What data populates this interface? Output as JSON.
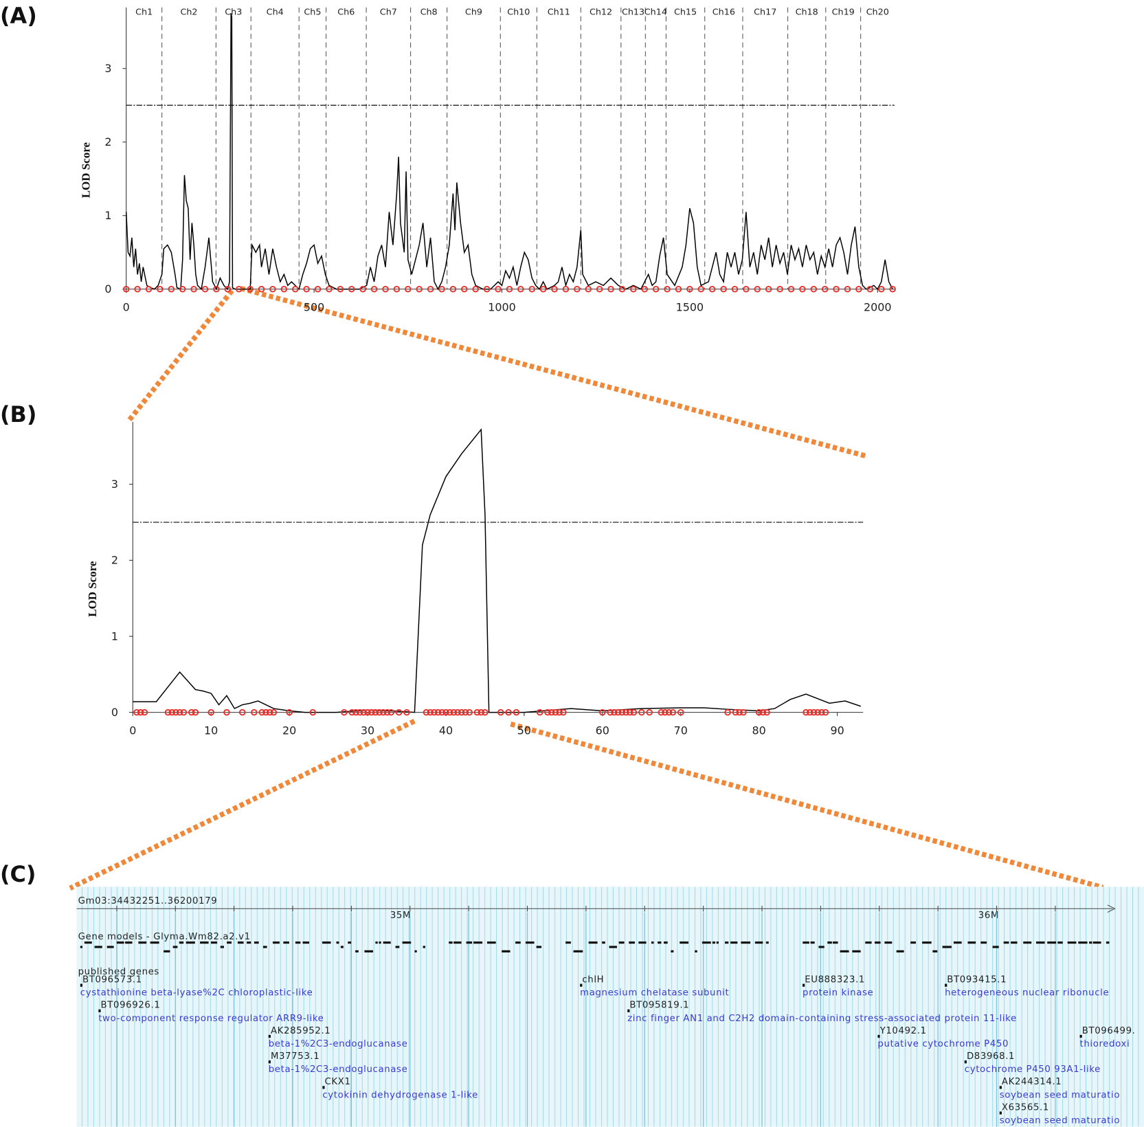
{
  "chart_data": [
    {
      "type": "line",
      "panel_label": "(A)",
      "y_label": "LOD Score",
      "color": "#000000",
      "xlim": [
        0,
        2045
      ],
      "ylim": [
        0,
        3.83
      ],
      "xticks": [
        0,
        500,
        1000,
        1500,
        2000
      ],
      "yticks": [
        0,
        1,
        2,
        3
      ],
      "threshold": 2.5,
      "chromosomes": [
        "Ch1",
        "Ch2",
        "Ch3",
        "Ch4",
        "Ch5",
        "Ch6",
        "Ch7",
        "Ch8",
        "Ch9",
        "Ch10",
        "Ch11",
        "Ch12",
        "Ch13",
        "Ch14",
        "Ch15",
        "Ch16",
        "Ch17",
        "Ch18",
        "Ch19",
        "Ch20"
      ],
      "chromosome_boundaries": [
        95,
        239,
        332,
        460,
        532,
        639,
        757,
        854,
        996,
        1093,
        1210,
        1317,
        1382,
        1437,
        1540,
        1641,
        1761,
        1862,
        1955
      ],
      "x": [
        0,
        5,
        10,
        15,
        20,
        25,
        30,
        35,
        40,
        45,
        55,
        65,
        75,
        85,
        95,
        100,
        110,
        120,
        130,
        135,
        145,
        150,
        155,
        160,
        165,
        170,
        175,
        180,
        185,
        190,
        200,
        210,
        220,
        225,
        230,
        240,
        250,
        260,
        270,
        275,
        279,
        281,
        283,
        290,
        310,
        330,
        335,
        345,
        355,
        360,
        370,
        380,
        390,
        400,
        410,
        420,
        430,
        440,
        450,
        460,
        470,
        480,
        490,
        500,
        510,
        520,
        530,
        540,
        560,
        580,
        600,
        620,
        640,
        650,
        660,
        670,
        680,
        690,
        700,
        710,
        720,
        725,
        730,
        740,
        745,
        750,
        760,
        770,
        780,
        790,
        800,
        810,
        820,
        830,
        840,
        850,
        860,
        870,
        875,
        880,
        890,
        900,
        910,
        920,
        930,
        950,
        970,
        990,
        1000,
        1010,
        1020,
        1030,
        1040,
        1050,
        1060,
        1070,
        1080,
        1090,
        1100,
        1110,
        1120,
        1140,
        1150,
        1160,
        1170,
        1180,
        1190,
        1200,
        1210,
        1215,
        1230,
        1250,
        1270,
        1290,
        1310,
        1330,
        1350,
        1370,
        1390,
        1400,
        1410,
        1420,
        1430,
        1440,
        1460,
        1480,
        1490,
        1500,
        1510,
        1520,
        1530,
        1550,
        1560,
        1570,
        1580,
        1590,
        1600,
        1610,
        1620,
        1630,
        1640,
        1650,
        1660,
        1670,
        1680,
        1690,
        1700,
        1710,
        1720,
        1730,
        1740,
        1750,
        1760,
        1770,
        1780,
        1790,
        1800,
        1810,
        1820,
        1830,
        1840,
        1850,
        1860,
        1870,
        1880,
        1890,
        1900,
        1910,
        1920,
        1930,
        1940,
        1950,
        1960,
        1970,
        1990,
        2000,
        2010,
        2020,
        2030,
        2040
      ],
      "values": [
        1.05,
        0.5,
        0.45,
        0.7,
        0.3,
        0.55,
        0.2,
        0.35,
        0.1,
        0.3,
        0.05,
        0.02,
        0,
        0.05,
        0.2,
        0.55,
        0.6,
        0.5,
        0.2,
        0.02,
        0,
        0.4,
        1.55,
        1.2,
        1.1,
        0.4,
        0.9,
        0.6,
        0.2,
        0.05,
        0,
        0.3,
        0.7,
        0.4,
        0.1,
        0,
        0.15,
        0.05,
        0,
        0.1,
        3.75,
        3.7,
        0.02,
        0,
        0,
        0,
        0.6,
        0.5,
        0.6,
        0.3,
        0.55,
        0.2,
        0.55,
        0.3,
        0.1,
        0.2,
        0.05,
        0.1,
        0.05,
        0,
        0.2,
        0.35,
        0.55,
        0.6,
        0.35,
        0.45,
        0.2,
        0.05,
        0,
        0,
        0,
        0,
        0.05,
        0.3,
        0.1,
        0.45,
        0.6,
        0.3,
        1.05,
        0.6,
        1.3,
        1.8,
        0.9,
        0.5,
        1.6,
        0.4,
        0.2,
        0.4,
        0.6,
        0.9,
        0.3,
        0.7,
        0.1,
        0,
        0.1,
        0.3,
        0.6,
        1.3,
        0.8,
        1.45,
        0.9,
        0.5,
        0.6,
        0.2,
        0.05,
        0,
        0,
        0.1,
        0.05,
        0.25,
        0.15,
        0.3,
        0.05,
        0.3,
        0.5,
        0.4,
        0.15,
        0.05,
        0,
        0.1,
        0,
        0.05,
        0.1,
        0.3,
        0.05,
        0.2,
        0.1,
        0.3,
        0.8,
        0.2,
        0.05,
        0.1,
        0.05,
        0.15,
        0.05,
        0,
        0.05,
        0,
        0.2,
        0.05,
        0.1,
        0.45,
        0.7,
        0.2,
        0.05,
        0.3,
        0.6,
        1.1,
        0.9,
        0.3,
        0.05,
        0.1,
        0.3,
        0.5,
        0.2,
        0.1,
        0.5,
        0.3,
        0.5,
        0.2,
        0.4,
        1.05,
        0.3,
        0.5,
        0.2,
        0.6,
        0.4,
        0.7,
        0.3,
        0.6,
        0.35,
        0.5,
        0.2,
        0.6,
        0.4,
        0.55,
        0.3,
        0.6,
        0.4,
        0.5,
        0.2,
        0.45,
        0.3,
        0.55,
        0.3,
        0.6,
        0.7,
        0.5,
        0.2,
        0.6,
        0.85,
        0.3,
        0.05,
        0,
        0.05,
        0,
        0.1,
        0.4,
        0.1,
        0
      ],
      "markers": {
        "color": "#e8302a",
        "x": [
          0,
          30,
          60,
          90,
          120,
          150,
          180,
          210,
          240,
          270,
          300,
          330,
          360,
          390,
          420,
          450,
          480,
          510,
          540,
          570,
          600,
          630,
          660,
          690,
          720,
          750,
          780,
          810,
          840,
          870,
          900,
          930,
          960,
          990,
          1020,
          1050,
          1080,
          1110,
          1140,
          1170,
          1200,
          1230,
          1260,
          1290,
          1320,
          1350,
          1380,
          1410,
          1440,
          1470,
          1500,
          1530,
          1560,
          1590,
          1620,
          1650,
          1680,
          1710,
          1740,
          1770,
          1800,
          1830,
          1860,
          1890,
          1920,
          1950,
          1980,
          2010,
          2040
        ],
        "values": [
          0,
          0,
          0,
          0,
          0,
          0,
          0,
          0,
          0,
          0,
          0,
          0,
          0,
          0,
          0,
          0,
          0,
          0,
          0,
          0,
          0,
          0,
          0,
          0,
          0,
          0,
          0,
          0,
          0,
          0,
          0,
          0,
          0,
          0,
          0,
          0,
          0,
          0,
          0,
          0,
          0,
          0,
          0,
          0,
          0,
          0,
          0,
          0,
          0,
          0,
          0,
          0,
          0,
          0,
          0,
          0,
          0,
          0,
          0,
          0,
          0,
          0,
          0,
          0,
          0,
          0,
          0,
          0,
          0
        ]
      }
    },
    {
      "type": "line",
      "panel_label": "(B)",
      "y_label": "LOD Score",
      "color": "#000000",
      "xlim": [
        0,
        93.3
      ],
      "ylim": [
        0,
        3.82
      ],
      "xticks": [
        0,
        10,
        20,
        30,
        40,
        50,
        60,
        70,
        80,
        90
      ],
      "yticks": [
        0,
        1,
        2,
        3
      ],
      "threshold": 2.5,
      "x": [
        0,
        3,
        6,
        8,
        9,
        10,
        11,
        12,
        13,
        14,
        15,
        16,
        17,
        18,
        20,
        22,
        26,
        30,
        33,
        36,
        37,
        38,
        40,
        42,
        44.5,
        45,
        45.5,
        50,
        56,
        60,
        65,
        70,
        73,
        76,
        80,
        82,
        84,
        86,
        89,
        91,
        93
      ],
      "values": [
        0.14,
        0.14,
        0.53,
        0.3,
        0.28,
        0.25,
        0.1,
        0.22,
        0.05,
        0.1,
        0.12,
        0.15,
        0.1,
        0.05,
        0.02,
        0,
        0,
        0.03,
        0.02,
        0,
        2.2,
        2.6,
        3.1,
        3.4,
        3.72,
        2.6,
        0,
        0,
        0.05,
        0.02,
        0.05,
        0.06,
        0.06,
        0.04,
        0.02,
        0.05,
        0.17,
        0.24,
        0.12,
        0.15,
        0.08
      ],
      "markers": {
        "color": "#e8302a",
        "x": [
          0.5,
          1,
          1.5,
          4.5,
          5,
          5.5,
          6,
          6.5,
          7.5,
          8,
          10,
          12,
          14,
          15.5,
          16.5,
          17,
          17.5,
          18,
          20,
          23,
          27,
          28,
          28.5,
          29,
          29.5,
          30,
          30.5,
          31,
          31.5,
          32,
          32.5,
          33,
          34,
          35,
          37.5,
          38,
          38.5,
          39,
          39.5,
          40,
          40.5,
          41,
          41.5,
          42,
          42.5,
          43,
          44,
          44.5,
          45,
          47,
          48,
          49,
          52,
          53,
          53.5,
          54,
          54.5,
          55,
          60,
          61,
          61.5,
          62,
          62.5,
          63,
          63.5,
          64,
          65,
          66,
          67.5,
          68,
          68.5,
          69,
          70,
          76,
          77,
          77.5,
          78,
          80,
          80.5,
          81,
          86,
          86.5,
          87,
          87.5,
          88,
          88.5
        ],
        "values": [
          0,
          0,
          0,
          0,
          0,
          0,
          0,
          0,
          0,
          0,
          0,
          0,
          0,
          0,
          0,
          0,
          0,
          0,
          0,
          0,
          0,
          0,
          0,
          0,
          0,
          0,
          0,
          0,
          0,
          0,
          0,
          0,
          0,
          0,
          0,
          0,
          0,
          0,
          0,
          0,
          0,
          0,
          0,
          0,
          0,
          0,
          0,
          0,
          0,
          0,
          0,
          0,
          0,
          0,
          0,
          0,
          0,
          0,
          0,
          0,
          0,
          0,
          0,
          0,
          0,
          0,
          0,
          0,
          0,
          0,
          0,
          0,
          0,
          0,
          0,
          0,
          0,
          0,
          0,
          0,
          0,
          0,
          0,
          0,
          0,
          0
        ]
      }
    }
  ],
  "genome_browser": {
    "panel_label": "(C)",
    "region": "Gm03:34432251..36200179",
    "ruler_labels": [
      "35M",
      "36M"
    ],
    "track": "Gene models - Glyma.Wm82.a2.v1",
    "published_track": "published genes",
    "genes": [
      {
        "id": "BT096573.1",
        "description": "cystathionine beta-lyase%2C chloroplastic-like"
      },
      {
        "id": "BT096926.1",
        "description": "two-component response regulator ARR9-like"
      },
      {
        "id": "AK285952.1",
        "description": "beta-1%2C3-endoglucanase"
      },
      {
        "id": "M37753.1",
        "description": "beta-1%2C3-endoglucanase"
      },
      {
        "id": "CKX1",
        "description": "cytokinin dehydrogenase 1-like"
      },
      {
        "id": "chlH",
        "description": "magnesium chelatase subunit"
      },
      {
        "id": "BT095819.1",
        "description": "zinc finger AN1 and C2H2 domain-containing stress-associated protein 11-like"
      },
      {
        "id": "EU888323.1",
        "description": "protein kinase"
      },
      {
        "id": "BT093415.1",
        "description": "heterogeneous nuclear ribonucle"
      },
      {
        "id": "Y10492.1",
        "description": "putative cytochrome P450"
      },
      {
        "id": "BT096499.",
        "description": "thioredoxi"
      },
      {
        "id": "D83968.1",
        "description": "cytochrome P450 93A1-like"
      },
      {
        "id": "AK244314.1",
        "description": "soybean seed maturatio"
      },
      {
        "id": "X63565.1",
        "description": "soybean seed maturatio"
      }
    ]
  }
}
